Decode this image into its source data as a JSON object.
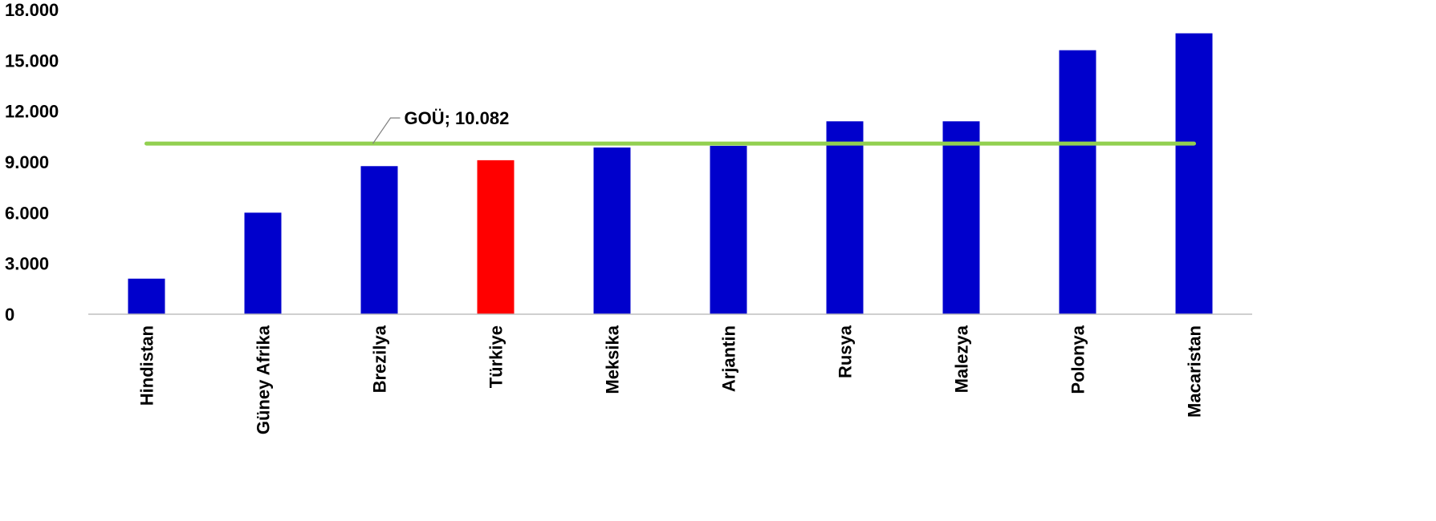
{
  "chart_data": {
    "type": "bar",
    "categories": [
      "Hindistan",
      "Güney Afrika",
      "Brezilya",
      "Türkiye",
      "Meksika",
      "Arjantin",
      "Rusya",
      "Malezya",
      "Polonya",
      "Macaristan"
    ],
    "values": [
      2100,
      6000,
      8750,
      9100,
      9850,
      9950,
      11400,
      11400,
      15600,
      16600
    ],
    "ylim": [
      0,
      18000
    ],
    "yticks": [
      "0",
      "3.000",
      "6.000",
      "9.000",
      "12.000",
      "15.000",
      "18.000"
    ],
    "ytick_values": [
      0,
      3000,
      6000,
      9000,
      12000,
      15000,
      18000
    ],
    "highlight_category": "Türkiye",
    "colors": {
      "bar": "#0000CC",
      "highlight": "#FF0000",
      "reference_line": "#92D050",
      "axis": "#BFBFBF",
      "leader": "#7F7F7F"
    },
    "reference_line": {
      "label": "GOÜ; 10.082",
      "value": 10082
    },
    "grid": false,
    "legend": "none",
    "title": "",
    "xlabel": "",
    "ylabel": ""
  }
}
